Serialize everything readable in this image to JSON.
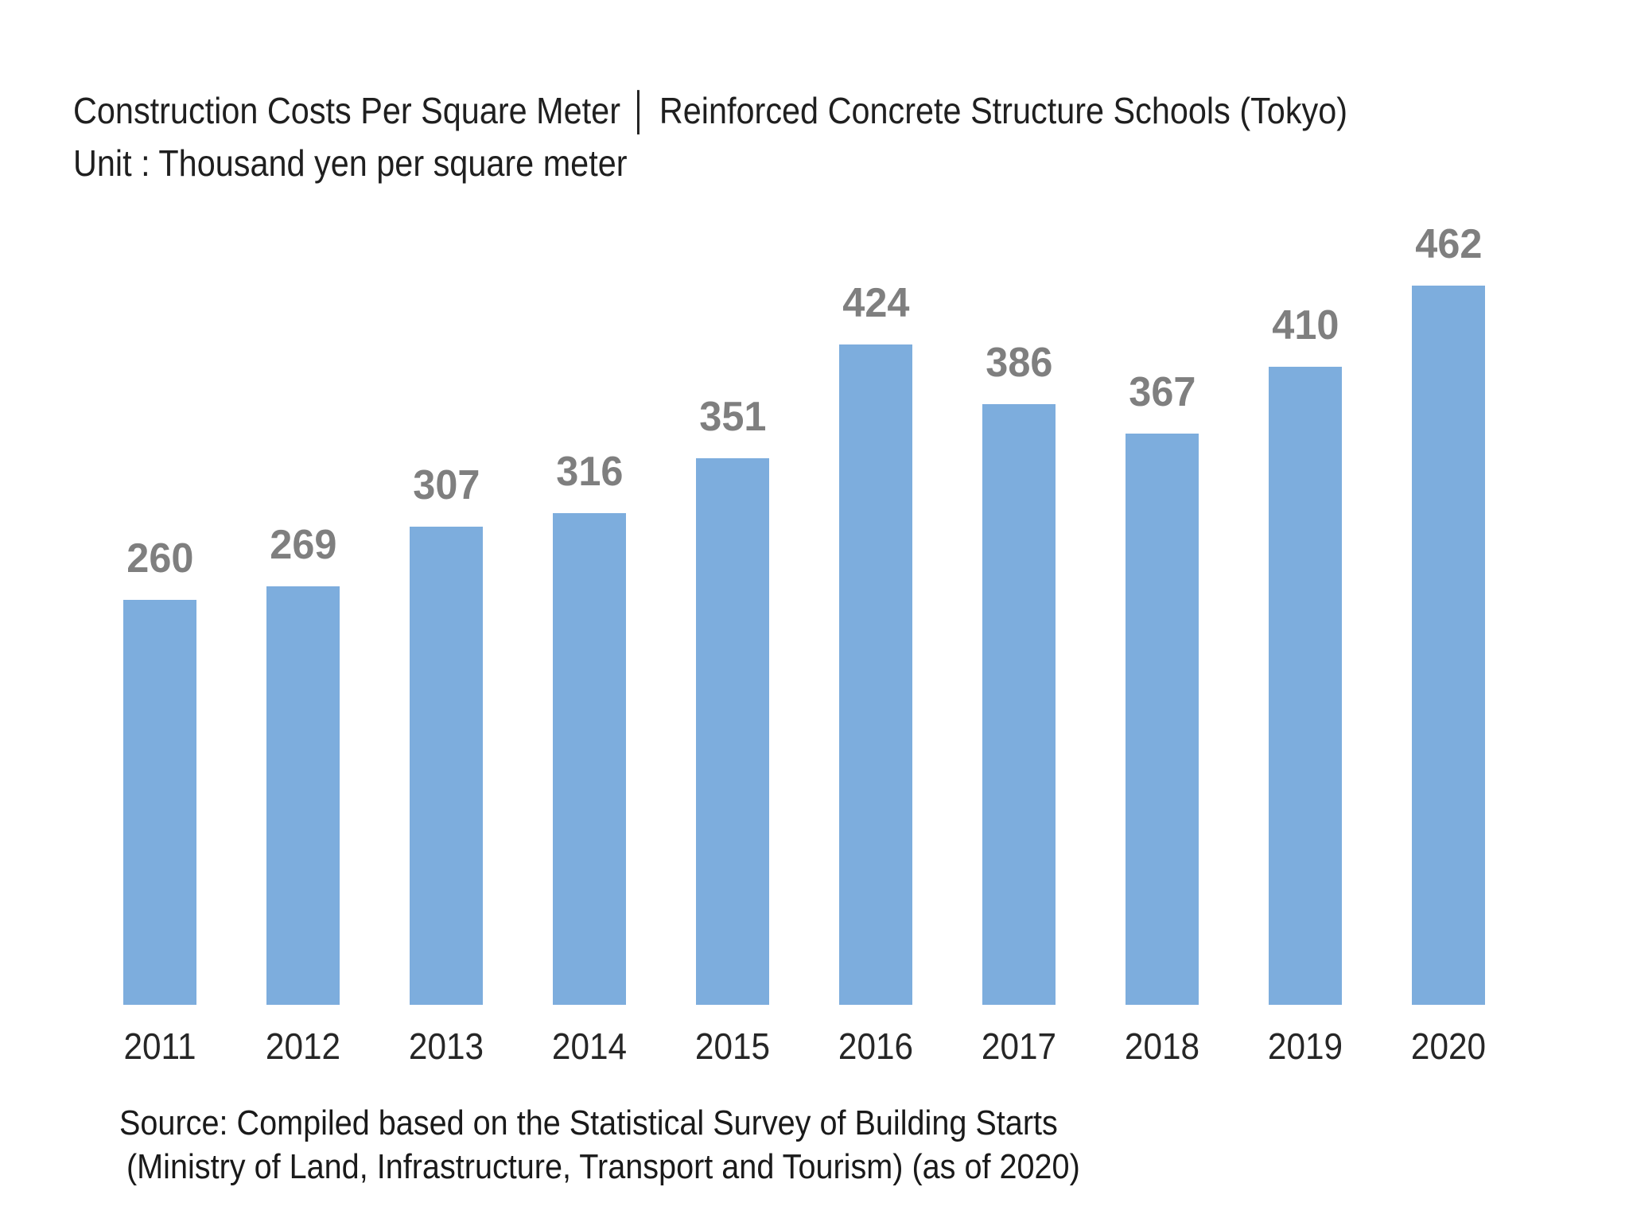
{
  "header": {
    "title": "Construction Costs Per Square Meter │ Reinforced Concrete Structure Schools (Tokyo)",
    "unit_line": "Unit : Thousand yen per square meter"
  },
  "chart_data": {
    "type": "bar",
    "title": "Construction Costs Per Square Meter | Reinforced Concrete Structure Schools (Tokyo)",
    "unit": "Thousand yen per square meter",
    "categories": [
      "2011",
      "2012",
      "2013",
      "2014",
      "2015",
      "2016",
      "2017",
      "2018",
      "2019",
      "2020"
    ],
    "values": [
      260,
      269,
      307,
      316,
      351,
      424,
      386,
      367,
      410,
      462
    ],
    "xlabel": "",
    "ylabel": "Thousand yen per square meter",
    "ylim": [
      0,
      462
    ],
    "gridlines": false,
    "legend": "none",
    "data_labels": true,
    "bar_color": "#7DADDD",
    "data_label_color": "#7F7F7F",
    "axis_label_color": "#262626"
  },
  "source": {
    "line1": "Source: Compiled based on the Statistical Survey of Building Starts",
    "line2": "(Ministry of Land, Infrastructure, Transport and Tourism) (as of 2020)"
  }
}
